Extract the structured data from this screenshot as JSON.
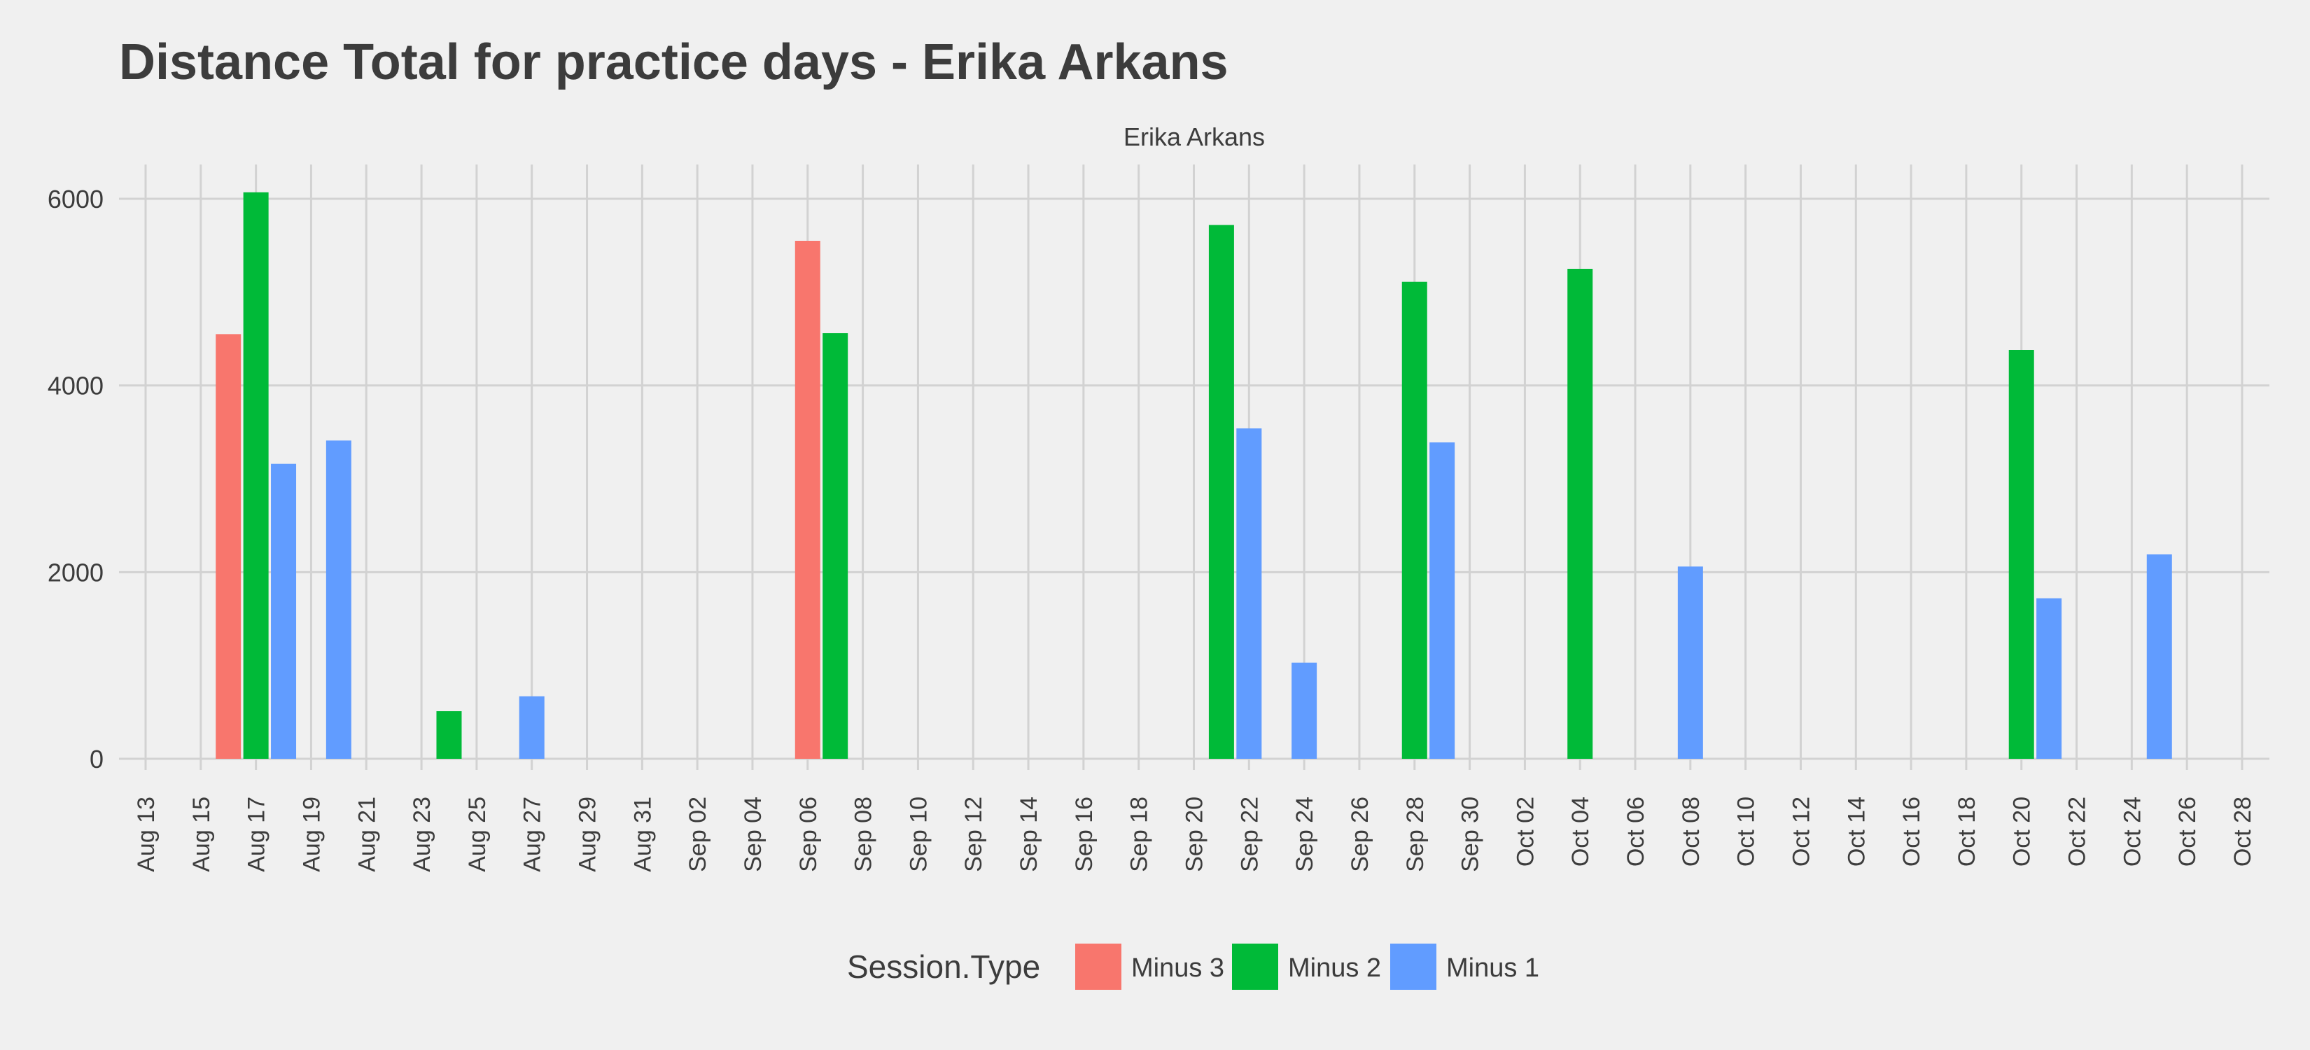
{
  "chart_data": {
    "type": "bar",
    "title": "Distance Total for practice days -  Erika Arkans",
    "facet_label": "Erika Arkans",
    "xlabel": "",
    "ylabel": "",
    "ylim": [
      0,
      6000
    ],
    "yticks": [
      0,
      2000,
      4000,
      6000
    ],
    "xlim": [
      "2019-08-13",
      "2019-10-28"
    ],
    "x_tick_labels": [
      "Aug 13",
      "Aug 15",
      "Aug 17",
      "Aug 19",
      "Aug 21",
      "Aug 23",
      "Aug 25",
      "Aug 27",
      "Aug 29",
      "Aug 31",
      "Sep 02",
      "Sep 04",
      "Sep 06",
      "Sep 08",
      "Sep 10",
      "Sep 12",
      "Sep 14",
      "Sep 16",
      "Sep 18",
      "Sep 20",
      "Sep 22",
      "Sep 24",
      "Sep 26",
      "Sep 28",
      "Sep 30",
      "Oct 02",
      "Oct 04",
      "Oct 06",
      "Oct 08",
      "Oct 10",
      "Oct 12",
      "Oct 14",
      "Oct 16",
      "Oct 18",
      "Oct 20",
      "Oct 22",
      "Oct 24",
      "Oct 26",
      "Oct 28"
    ],
    "grid": true,
    "legend": {
      "title": "Session.Type",
      "position": "bottom"
    },
    "series": [
      {
        "name": "Minus 3",
        "color": "#f8766d",
        "points": [
          {
            "x": "2019-08-16",
            "y": 4550
          },
          {
            "x": "2019-09-06",
            "y": 5550
          }
        ]
      },
      {
        "name": "Minus 2",
        "color": "#00ba38",
        "points": [
          {
            "x": "2019-08-17",
            "y": 6070
          },
          {
            "x": "2019-08-24",
            "y": 510
          },
          {
            "x": "2019-09-07",
            "y": 4560
          },
          {
            "x": "2019-09-21",
            "y": 5720
          },
          {
            "x": "2019-09-28",
            "y": 5110
          },
          {
            "x": "2019-10-04",
            "y": 5250
          },
          {
            "x": "2019-10-20",
            "y": 4380
          }
        ]
      },
      {
        "name": "Minus 1",
        "color": "#619cff",
        "points": [
          {
            "x": "2019-08-18",
            "y": 3160
          },
          {
            "x": "2019-08-20",
            "y": 3410
          },
          {
            "x": "2019-08-27",
            "y": 670
          },
          {
            "x": "2019-09-22",
            "y": 3540
          },
          {
            "x": "2019-09-24",
            "y": 1030
          },
          {
            "x": "2019-09-29",
            "y": 3390
          },
          {
            "x": "2019-10-08",
            "y": 2060
          },
          {
            "x": "2019-10-21",
            "y": 1720
          },
          {
            "x": "2019-10-25",
            "y": 2190
          }
        ]
      }
    ]
  }
}
